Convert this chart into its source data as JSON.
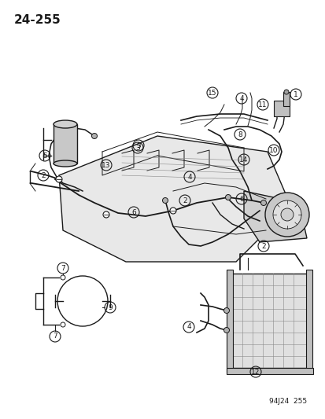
{
  "page_number": "24-255",
  "part_number": "94J24 255",
  "background_color": "#ffffff",
  "line_color": "#1a1a1a",
  "text_color": "#1a1a1a",
  "fig_width": 4.14,
  "fig_height": 5.33,
  "dpi": 100,
  "callout_numbers": [
    1,
    2,
    3,
    4,
    5,
    6,
    7,
    8,
    9,
    10,
    11,
    12,
    13,
    14,
    15
  ],
  "page_label": "24-255",
  "bottom_label": "94J24  255"
}
